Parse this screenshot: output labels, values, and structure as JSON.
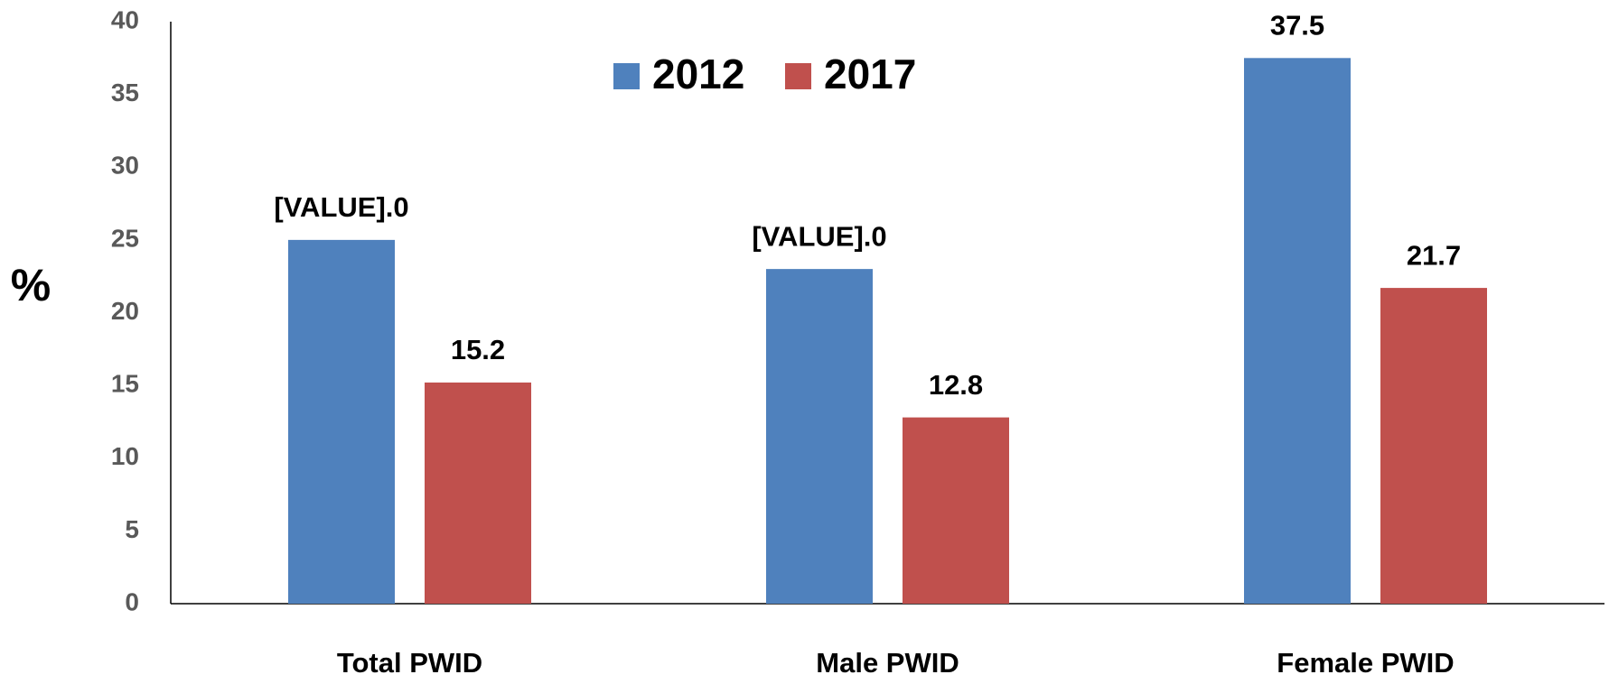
{
  "chart_data": {
    "type": "bar",
    "y_label": "%",
    "categories": [
      "Total PWID",
      "Male PWID",
      "Female PWID"
    ],
    "series": [
      {
        "name": "2012",
        "color": "#4f81bd",
        "values": [
          25,
          23,
          37.5
        ],
        "value_labels": [
          "[VALUE].0",
          "[VALUE].0",
          "37.5"
        ]
      },
      {
        "name": "2017",
        "color": "#c0504d",
        "values": [
          15.2,
          12.8,
          21.7
        ]
      }
    ],
    "ylim": [
      0,
      40
    ],
    "yticks": [
      0,
      5,
      10,
      15,
      20,
      25,
      30,
      35,
      40
    ],
    "grid": false,
    "legend": "top"
  }
}
